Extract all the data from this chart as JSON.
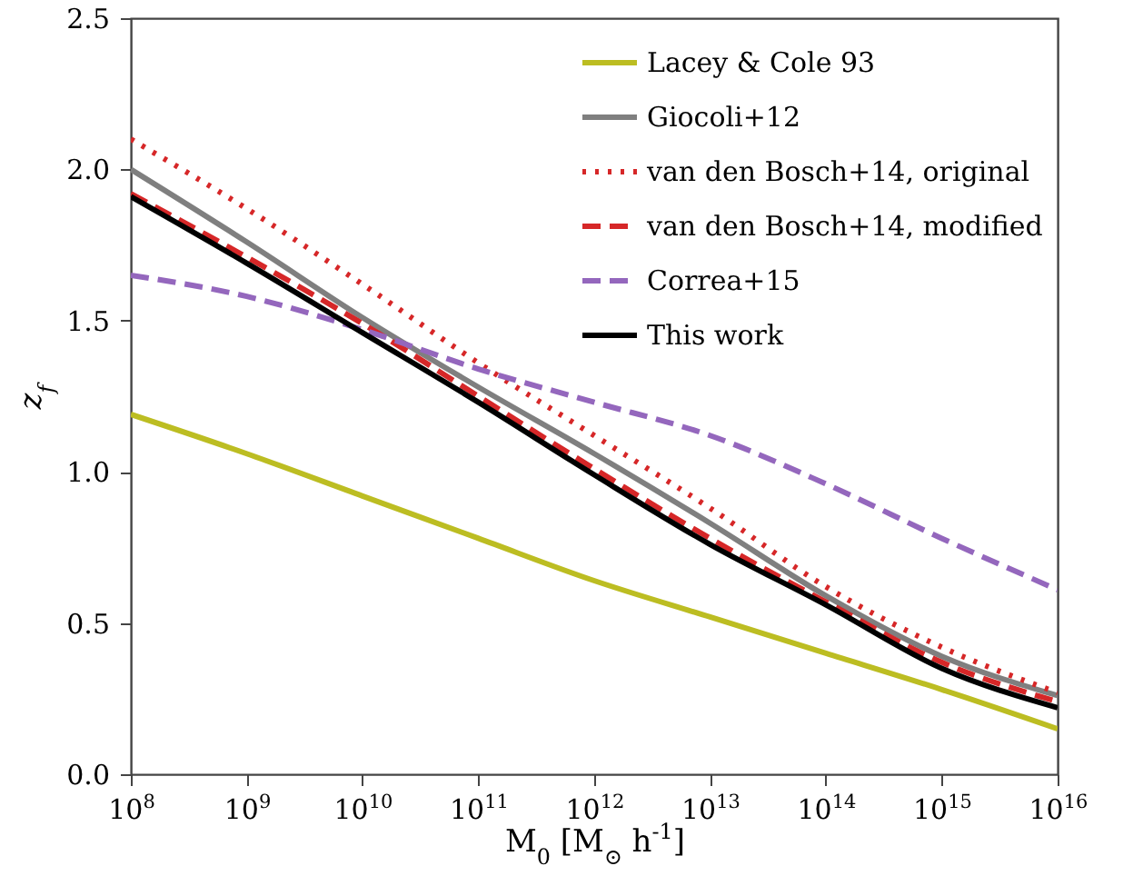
{
  "chart_data": {
    "type": "line",
    "xlabel": "M$_{0}$ [M$_{⊙}$ h$^{-1}$]",
    "ylabel": "z$_{f}$",
    "x": [
      100000000,
      1000000000,
      10000000000,
      100000000000,
      1000000000000,
      10000000000000,
      100000000000000,
      1000000000000000,
      10000000000000000
    ],
    "series": [
      {
        "name": "Lacey & Cole 93",
        "color": "#bcbd22",
        "line_style": "solid",
        "values": [
          1.19,
          1.06,
          0.92,
          0.78,
          0.64,
          0.52,
          0.4,
          0.28,
          0.15
        ]
      },
      {
        "name": "Giocoli+12",
        "color": "#7f7f7f",
        "line_style": "solid",
        "values": [
          2.0,
          1.76,
          1.51,
          1.28,
          1.06,
          0.83,
          0.59,
          0.39,
          0.26
        ]
      },
      {
        "name": "van den Bosch+14, original",
        "color": "#d62728",
        "line_style": "dotted",
        "values": [
          2.1,
          1.87,
          1.62,
          1.36,
          1.12,
          0.88,
          0.62,
          0.42,
          0.27
        ]
      },
      {
        "name": "van den Bosch+14, modified",
        "color": "#d62728",
        "line_style": "dashed",
        "values": [
          1.92,
          1.71,
          1.49,
          1.25,
          1.01,
          0.78,
          0.57,
          0.37,
          0.24
        ]
      },
      {
        "name": "Correa+15",
        "color": "#9467bd",
        "line_style": "dashed",
        "values": [
          1.65,
          1.58,
          1.47,
          1.34,
          1.23,
          1.12,
          0.96,
          0.78,
          0.61
        ]
      },
      {
        "name": "This work",
        "color": "#000000",
        "line_style": "solid",
        "values": [
          1.91,
          1.69,
          1.46,
          1.23,
          0.99,
          0.76,
          0.56,
          0.35,
          0.22
        ]
      }
    ],
    "log": "x",
    "xlim": [
      100000000,
      10000000000000000
    ],
    "ylim": [
      0,
      2.5
    ],
    "xticks": [
      {
        "value": 100000000,
        "label": "10$^{8}$"
      },
      {
        "value": 1000000000,
        "label": "10$^{9}$"
      },
      {
        "value": 10000000000,
        "label": "10$^{10}$"
      },
      {
        "value": 100000000000,
        "label": "10$^{11}$"
      },
      {
        "value": 1000000000000,
        "label": "10$^{12}$"
      },
      {
        "value": 10000000000000,
        "label": "10$^{13}$"
      },
      {
        "value": 100000000000000,
        "label": "10$^{14}$"
      },
      {
        "value": 1000000000000000,
        "label": "10$^{15}$"
      },
      {
        "value": 10000000000000000,
        "label": "10$^{16}$"
      }
    ],
    "yticks": [
      {
        "value": 0,
        "label": "0.0"
      },
      {
        "value": 0.5,
        "label": "0.5"
      },
      {
        "value": 1,
        "label": "1.0"
      },
      {
        "value": 1.5,
        "label": "1.5"
      },
      {
        "value": 2,
        "label": "2.0"
      },
      {
        "value": 2.5,
        "label": "2.5"
      }
    ],
    "legend": "top right",
    "grid": false
  }
}
